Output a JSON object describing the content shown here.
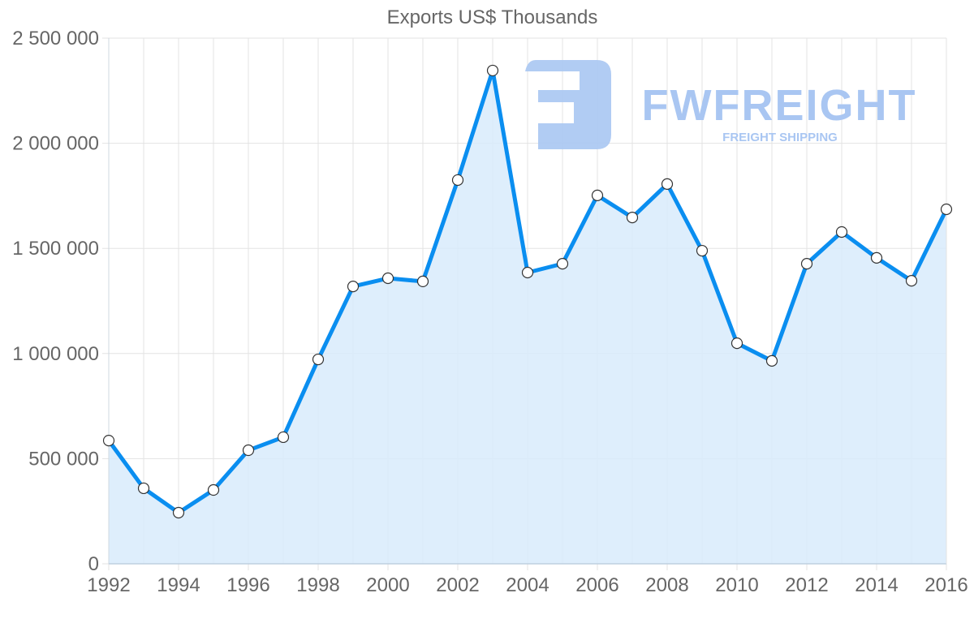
{
  "chart_data": {
    "type": "line",
    "title": "Exports US$ Thousands",
    "xlabel": "",
    "ylabel": "",
    "x": [
      1992,
      1993,
      1994,
      1995,
      1996,
      1997,
      1998,
      1999,
      2000,
      2001,
      2002,
      2003,
      2004,
      2005,
      2006,
      2007,
      2008,
      2009,
      2010,
      2011,
      2012,
      2013,
      2014,
      2015,
      2016
    ],
    "series": [
      {
        "name": "Exports US$ Thousands",
        "values": [
          586000,
          359000,
          243000,
          351000,
          540000,
          602000,
          972000,
          1319000,
          1358000,
          1343000,
          1825000,
          2346000,
          1385000,
          1427000,
          1752000,
          1647000,
          1806000,
          1489000,
          1049000,
          965000,
          1427000,
          1578000,
          1455000,
          1346000,
          1686000
        ],
        "fill": true
      }
    ],
    "xticks": [
      "1992",
      "1994",
      "1996",
      "1998",
      "2000",
      "2002",
      "2004",
      "2006",
      "2008",
      "2010",
      "2012",
      "2014",
      "2016"
    ],
    "yticks": [
      0,
      500000,
      1000000,
      1500000,
      2000000,
      2500000
    ],
    "ytick_labels": [
      "0",
      "500 000",
      "1 000 000",
      "1 500 000",
      "2 000 000",
      "2 500 000"
    ],
    "ylim": [
      0,
      2500000
    ],
    "xlim": [
      1992,
      2016
    ],
    "grid": true,
    "legend": "none"
  },
  "colors": {
    "line": "#0a8ef0",
    "fill": "#d8ebfc",
    "grid": "#e3e3e3",
    "axis_text": "#666666",
    "point_fill": "#ffffff",
    "point_stroke": "#333333",
    "watermark": "#a9c6f2"
  },
  "watermark": {
    "brand": "FWFREIGHT",
    "tagline": "FREIGHT SHIPPING",
    "icon": "fwfreight-logo-icon"
  }
}
